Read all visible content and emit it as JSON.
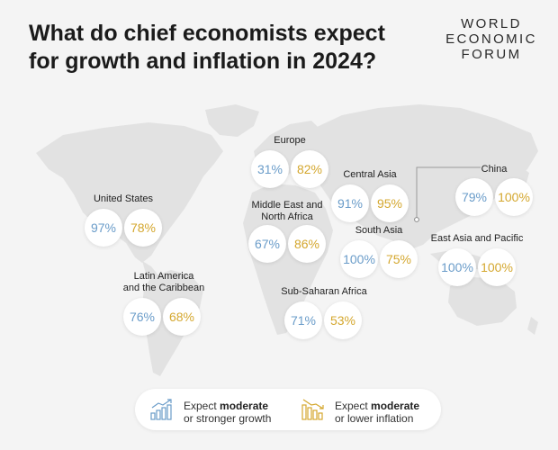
{
  "title_line1": "What do chief economists expect",
  "title_line2": "for growth and inflation in 2024?",
  "logo": [
    "WORLD",
    "ECONOMIC",
    "FORUM"
  ],
  "colors": {
    "growth": "#6a9cc9",
    "inflation": "#d4a72e",
    "map": "#e2e2e2",
    "background": "#f4f4f4"
  },
  "regions": {
    "europe": {
      "label": "Europe",
      "growth": "31%",
      "inflation": "82%"
    },
    "central_asia": {
      "label": "Central Asia",
      "growth": "91%",
      "inflation": "95%"
    },
    "china": {
      "label": "China",
      "growth": "79%",
      "inflation": "100%"
    },
    "united_states": {
      "label": "United States",
      "growth": "97%",
      "inflation": "78%"
    },
    "mena": {
      "label_line1": "Middle East and",
      "label_line2": "North Africa",
      "growth": "67%",
      "inflation": "86%"
    },
    "south_asia": {
      "label": "South Asia",
      "growth": "100%",
      "inflation": "75%"
    },
    "east_asia_pacific": {
      "label": "East Asia and Pacific",
      "growth": "100%",
      "inflation": "100%"
    },
    "latam": {
      "label_line1": "Latin America",
      "label_line2": "and the Caribbean",
      "growth": "76%",
      "inflation": "68%"
    },
    "ssa": {
      "label": "Sub-Saharan Africa",
      "growth": "71%",
      "inflation": "53%"
    }
  },
  "legend": {
    "growth": {
      "line1_prefix": "Expect ",
      "line1_bold": "moderate",
      "line2": "or stronger growth",
      "icon": "growth-bars-icon"
    },
    "inflation": {
      "line1_prefix": "Expect ",
      "line1_bold": "moderate",
      "line2": "or lower inflation",
      "icon": "inflation-bars-icon"
    }
  }
}
